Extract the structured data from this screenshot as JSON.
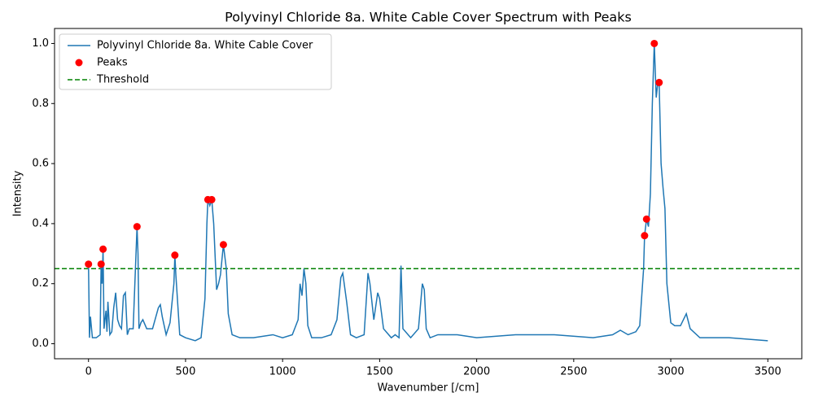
{
  "chart_data": {
    "type": "line",
    "title": "Polyvinyl Chloride 8a. White Cable Cover Spectrum with Peaks",
    "x_label": "Wavenumber [/cm]",
    "y_label": "Intensity",
    "xlim": [
      -175,
      3675
    ],
    "ylim": [
      -0.05,
      1.05
    ],
    "xticks": [
      0,
      500,
      1000,
      1500,
      2000,
      2500,
      3000,
      3500
    ],
    "yticks": [
      {
        "value": 0,
        "label": "0.0"
      },
      0.2,
      0.4,
      0.6,
      0.8,
      {
        "value": 1,
        "label": "1.0"
      }
    ],
    "legend": "upper left",
    "series": [
      {
        "name": "Polyvinyl Chloride 8a. White Cable Cover",
        "type": "line",
        "color": "#1f77b4",
        "x": [
          0,
          5,
          10,
          20,
          40,
          60,
          65,
          70,
          75,
          80,
          90,
          95,
          100,
          110,
          120,
          130,
          140,
          150,
          160,
          170,
          180,
          190,
          200,
          210,
          230,
          250,
          255,
          260,
          270,
          280,
          300,
          330,
          360,
          370,
          380,
          400,
          420,
          440,
          445,
          450,
          470,
          500,
          550,
          580,
          600,
          610,
          615,
          625,
          635,
          645,
          660,
          670,
          680,
          695,
          710,
          720,
          740,
          780,
          850,
          950,
          1000,
          1050,
          1080,
          1090,
          1100,
          1110,
          1120,
          1130,
          1150,
          1200,
          1250,
          1280,
          1300,
          1310,
          1330,
          1350,
          1380,
          1420,
          1440,
          1450,
          1470,
          1490,
          1500,
          1520,
          1560,
          1580,
          1600,
          1610,
          1620,
          1660,
          1700,
          1720,
          1730,
          1740,
          1760,
          1800,
          1900,
          2000,
          2200,
          2400,
          2600,
          2700,
          2740,
          2780,
          2820,
          2840,
          2860,
          2865,
          2875,
          2885,
          2895,
          2905,
          2915,
          2925,
          2935,
          2940,
          2950,
          2960,
          2970,
          2980,
          3000,
          3020,
          3050,
          3080,
          3100,
          3150,
          3300,
          3500
        ],
        "values": [
          0.265,
          0.02,
          0.09,
          0.02,
          0.02,
          0.03,
          0.265,
          0.2,
          0.315,
          0.05,
          0.11,
          0.04,
          0.14,
          0.03,
          0.04,
          0.12,
          0.17,
          0.08,
          0.06,
          0.05,
          0.16,
          0.17,
          0.03,
          0.05,
          0.05,
          0.39,
          0.3,
          0.05,
          0.07,
          0.08,
          0.05,
          0.05,
          0.12,
          0.13,
          0.09,
          0.03,
          0.07,
          0.2,
          0.295,
          0.23,
          0.03,
          0.02,
          0.01,
          0.02,
          0.15,
          0.4,
          0.48,
          0.46,
          0.48,
          0.4,
          0.18,
          0.2,
          0.23,
          0.33,
          0.25,
          0.1,
          0.03,
          0.02,
          0.02,
          0.03,
          0.02,
          0.03,
          0.08,
          0.2,
          0.16,
          0.25,
          0.2,
          0.06,
          0.02,
          0.02,
          0.03,
          0.08,
          0.22,
          0.235,
          0.14,
          0.03,
          0.02,
          0.03,
          0.235,
          0.2,
          0.08,
          0.17,
          0.15,
          0.05,
          0.02,
          0.03,
          0.02,
          0.26,
          0.05,
          0.02,
          0.05,
          0.2,
          0.18,
          0.05,
          0.02,
          0.03,
          0.03,
          0.02,
          0.03,
          0.03,
          0.02,
          0.03,
          0.045,
          0.03,
          0.04,
          0.06,
          0.25,
          0.36,
          0.415,
          0.39,
          0.5,
          0.8,
          1.0,
          0.82,
          0.88,
          0.87,
          0.6,
          0.52,
          0.45,
          0.2,
          0.07,
          0.06,
          0.06,
          0.1,
          0.05,
          0.02,
          0.02,
          0.01
        ]
      },
      {
        "name": "Peaks",
        "type": "scatter",
        "color": "red",
        "x": [
          0,
          65,
          75,
          250,
          445,
          615,
          635,
          695,
          2865,
          2875,
          2915,
          2940
        ],
        "values": [
          0.265,
          0.265,
          0.315,
          0.39,
          0.295,
          0.48,
          0.48,
          0.33,
          0.36,
          0.415,
          1.0,
          0.87
        ]
      },
      {
        "name": "Threshold",
        "type": "hline",
        "color": "green",
        "dash": true,
        "value": 0.25
      }
    ]
  }
}
